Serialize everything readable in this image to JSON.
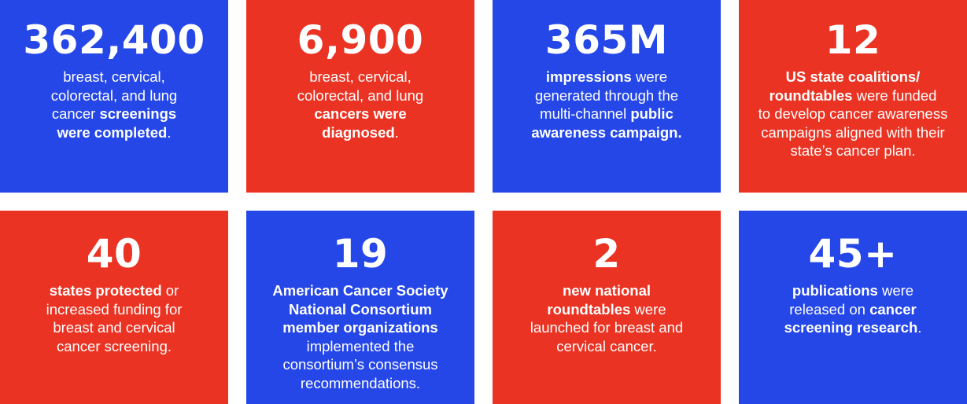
{
  "colors": {
    "blue": "#2547e8",
    "red": "#ea3323",
    "text": "#ffffff"
  },
  "stats": [
    {
      "number": "362,400",
      "lines": [
        [
          {
            "t": "breast, cervical,",
            "b": false
          }
        ],
        [
          {
            "t": "colorectal, and lung",
            "b": false
          }
        ],
        [
          {
            "t": "cancer ",
            "b": false
          },
          {
            "t": "screenings",
            "b": true
          }
        ],
        [
          {
            "t": "were completed",
            "b": true
          },
          {
            "t": ".",
            "b": false
          }
        ]
      ]
    },
    {
      "number": "6,900",
      "lines": [
        [
          {
            "t": "breast, cervical,",
            "b": false
          }
        ],
        [
          {
            "t": "colorectal, and lung",
            "b": false
          }
        ],
        [
          {
            "t": "cancers were",
            "b": true
          }
        ],
        [
          {
            "t": "diagnosed",
            "b": true
          },
          {
            "t": ".",
            "b": false
          }
        ]
      ]
    },
    {
      "number": "365M",
      "lines": [
        [
          {
            "t": "impressions",
            "b": true
          },
          {
            "t": " were",
            "b": false
          }
        ],
        [
          {
            "t": "generated through the",
            "b": false
          }
        ],
        [
          {
            "t": "multi-channel ",
            "b": false
          },
          {
            "t": "public",
            "b": true
          }
        ],
        [
          {
            "t": "awareness campaign.",
            "b": true
          }
        ]
      ]
    },
    {
      "number": "12",
      "lines": [
        [
          {
            "t": "US state coalitions/",
            "b": true
          }
        ],
        [
          {
            "t": "roundtables",
            "b": true
          },
          {
            "t": " were funded",
            "b": false
          }
        ],
        [
          {
            "t": "to develop cancer awareness",
            "b": false
          }
        ],
        [
          {
            "t": "campaigns aligned with their",
            "b": false
          }
        ],
        [
          {
            "t": "state’s cancer plan.",
            "b": false
          }
        ]
      ]
    },
    {
      "number": "40",
      "lines": [
        [
          {
            "t": "states protected",
            "b": true
          },
          {
            "t": " or",
            "b": false
          }
        ],
        [
          {
            "t": "increased funding for",
            "b": false
          }
        ],
        [
          {
            "t": "breast and cervical",
            "b": false
          }
        ],
        [
          {
            "t": "cancer screening.",
            "b": false
          }
        ]
      ]
    },
    {
      "number": "19",
      "lines": [
        [
          {
            "t": "American Cancer Society",
            "b": true
          }
        ],
        [
          {
            "t": "National Consortium",
            "b": true
          }
        ],
        [
          {
            "t": "member organizations",
            "b": true
          }
        ],
        [
          {
            "t": "implemented the",
            "b": false
          }
        ],
        [
          {
            "t": "consortium’s consensus",
            "b": false
          }
        ],
        [
          {
            "t": "recommendations.",
            "b": false
          }
        ]
      ]
    },
    {
      "number": "2",
      "lines": [
        [
          {
            "t": "new national",
            "b": true
          }
        ],
        [
          {
            "t": "roundtables",
            "b": true
          },
          {
            "t": " were",
            "b": false
          }
        ],
        [
          {
            "t": "launched for breast and",
            "b": false
          }
        ],
        [
          {
            "t": "cervical cancer.",
            "b": false
          }
        ]
      ]
    },
    {
      "number": "45+",
      "lines": [
        [
          {
            "t": "publications",
            "b": true
          },
          {
            "t": " were",
            "b": false
          }
        ],
        [
          {
            "t": "released on ",
            "b": false
          },
          {
            "t": "cancer",
            "b": true
          }
        ],
        [
          {
            "t": "screening research",
            "b": true
          },
          {
            "t": ".",
            "b": false
          }
        ]
      ]
    }
  ]
}
